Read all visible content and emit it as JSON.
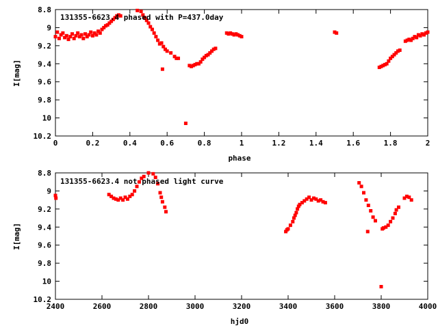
{
  "chart_data": [
    {
      "type": "scatter",
      "title": "131355-6623.4 phased with P=437.0day",
      "xlabel": "phase",
      "ylabel": "I[mag]",
      "xlim": [
        0,
        2
      ],
      "ylim": [
        10.2,
        8.8
      ],
      "y_inverted": true,
      "xticks": [
        0,
        0.2,
        0.4,
        0.6,
        0.8,
        1,
        1.2,
        1.4,
        1.6,
        1.8,
        2
      ],
      "xtick_labels": [
        "0",
        "0.2",
        "0.4",
        "0.6",
        "0.8",
        "1",
        "1.2",
        "1.4",
        "1.6",
        "1.8",
        "2"
      ],
      "yticks": [
        8.8,
        9,
        9.2,
        9.4,
        9.6,
        9.8,
        10,
        10.2
      ],
      "ytick_labels": [
        "8.8",
        "9",
        "9.2",
        "9.4",
        "9.6",
        "9.8",
        "10",
        "10.2"
      ],
      "grid": false,
      "marker_color": "#ff0000",
      "series": [
        {
          "points": [
            [
              0.0,
              9.1
            ],
            [
              0.01,
              9.05
            ],
            [
              0.02,
              9.12
            ],
            [
              0.03,
              9.08
            ],
            [
              0.04,
              9.06
            ],
            [
              0.05,
              9.11
            ],
            [
              0.06,
              9.09
            ],
            [
              0.07,
              9.13
            ],
            [
              0.08,
              9.1
            ],
            [
              0.09,
              9.07
            ],
            [
              0.1,
              9.12
            ],
            [
              0.11,
              9.09
            ],
            [
              0.12,
              9.06
            ],
            [
              0.13,
              9.1
            ],
            [
              0.14,
              9.08
            ],
            [
              0.15,
              9.12
            ],
            [
              0.16,
              9.07
            ],
            [
              0.17,
              9.1
            ],
            [
              0.18,
              9.08
            ],
            [
              0.19,
              9.05
            ],
            [
              0.2,
              9.09
            ],
            [
              0.21,
              9.06
            ],
            [
              0.22,
              9.08
            ],
            [
              0.23,
              9.04
            ],
            [
              0.24,
              9.06
            ],
            [
              0.25,
              9.02
            ],
            [
              0.26,
              9.0
            ],
            [
              0.27,
              8.98
            ],
            [
              0.28,
              8.97
            ],
            [
              0.29,
              8.95
            ],
            [
              0.3,
              8.93
            ],
            [
              0.31,
              8.91
            ],
            [
              0.32,
              8.89
            ],
            [
              0.33,
              8.87
            ],
            [
              0.34,
              8.86
            ],
            [
              0.35,
              8.87
            ],
            [
              0.44,
              8.81
            ],
            [
              0.46,
              8.82
            ],
            [
              0.47,
              8.86
            ],
            [
              0.48,
              8.89
            ],
            [
              0.49,
              8.92
            ],
            [
              0.5,
              8.95
            ],
            [
              0.51,
              8.99
            ],
            [
              0.52,
              9.02
            ],
            [
              0.53,
              9.06
            ],
            [
              0.54,
              9.1
            ],
            [
              0.55,
              9.14
            ],
            [
              0.56,
              9.18
            ],
            [
              0.57,
              9.17
            ],
            [
              0.575,
              9.46
            ],
            [
              0.58,
              9.21
            ],
            [
              0.59,
              9.24
            ],
            [
              0.6,
              9.26
            ],
            [
              0.62,
              9.28
            ],
            [
              0.64,
              9.32
            ],
            [
              0.65,
              9.34
            ],
            [
              0.66,
              9.34
            ],
            [
              0.7,
              10.06
            ],
            [
              0.72,
              9.42
            ],
            [
              0.73,
              9.43
            ],
            [
              0.74,
              9.42
            ],
            [
              0.75,
              9.41
            ],
            [
              0.76,
              9.4
            ],
            [
              0.77,
              9.4
            ],
            [
              0.78,
              9.38
            ],
            [
              0.79,
              9.35
            ],
            [
              0.8,
              9.33
            ],
            [
              0.81,
              9.31
            ],
            [
              0.82,
              9.3
            ],
            [
              0.83,
              9.28
            ],
            [
              0.84,
              9.26
            ],
            [
              0.85,
              9.24
            ],
            [
              0.86,
              9.23
            ],
            [
              0.92,
              9.06
            ],
            [
              0.93,
              9.07
            ],
            [
              0.94,
              9.06
            ],
            [
              0.95,
              9.07
            ],
            [
              0.96,
              9.08
            ],
            [
              0.97,
              9.07
            ],
            [
              0.98,
              9.08
            ],
            [
              0.99,
              9.09
            ],
            [
              1.0,
              9.1
            ],
            [
              1.5,
              9.05
            ],
            [
              1.51,
              9.06
            ],
            [
              1.74,
              9.44
            ],
            [
              1.75,
              9.43
            ],
            [
              1.76,
              9.42
            ],
            [
              1.77,
              9.41
            ],
            [
              1.78,
              9.4
            ],
            [
              1.79,
              9.37
            ],
            [
              1.8,
              9.34
            ],
            [
              1.81,
              9.32
            ],
            [
              1.82,
              9.3
            ],
            [
              1.83,
              9.28
            ],
            [
              1.84,
              9.26
            ],
            [
              1.85,
              9.25
            ],
            [
              1.88,
              9.15
            ],
            [
              1.89,
              9.14
            ],
            [
              1.9,
              9.13
            ],
            [
              1.91,
              9.14
            ],
            [
              1.92,
              9.12
            ],
            [
              1.93,
              9.1
            ],
            [
              1.94,
              9.11
            ],
            [
              1.95,
              9.08
            ],
            [
              1.96,
              9.09
            ],
            [
              1.97,
              9.07
            ],
            [
              1.98,
              9.08
            ],
            [
              1.99,
              9.06
            ],
            [
              2.0,
              9.05
            ]
          ]
        }
      ]
    },
    {
      "type": "scatter",
      "title": "131355-6623.4 not phased light curve",
      "xlabel": "hjd0",
      "ylabel": "I[mag]",
      "xlim": [
        2400,
        4000
      ],
      "ylim": [
        10.2,
        8.8
      ],
      "y_inverted": true,
      "xticks": [
        2400,
        2600,
        2800,
        3000,
        3200,
        3400,
        3600,
        3800,
        4000
      ],
      "xtick_labels": [
        "2400",
        "2600",
        "2800",
        "3000",
        "3200",
        "3400",
        "3600",
        "3800",
        "4000"
      ],
      "yticks": [
        8.8,
        9,
        9.2,
        9.4,
        9.6,
        9.8,
        10,
        10.2
      ],
      "ytick_labels": [
        "8.8",
        "9",
        "9.2",
        "9.4",
        "9.6",
        "9.8",
        "10",
        "10.2"
      ],
      "grid": false,
      "marker_color": "#ff0000",
      "series": [
        {
          "points": [
            [
              2400,
              9.05
            ],
            [
              2402,
              9.08
            ],
            [
              2630,
              9.04
            ],
            [
              2640,
              9.06
            ],
            [
              2650,
              9.08
            ],
            [
              2660,
              9.09
            ],
            [
              2670,
              9.1
            ],
            [
              2680,
              9.08
            ],
            [
              2690,
              9.1
            ],
            [
              2700,
              9.07
            ],
            [
              2710,
              9.09
            ],
            [
              2720,
              9.06
            ],
            [
              2730,
              9.04
            ],
            [
              2740,
              9.0
            ],
            [
              2750,
              8.95
            ],
            [
              2760,
              8.9
            ],
            [
              2770,
              8.86
            ],
            [
              2780,
              8.84
            ],
            [
              2800,
              8.8
            ],
            [
              2820,
              8.81
            ],
            [
              2830,
              8.85
            ],
            [
              2840,
              8.92
            ],
            [
              2850,
              9.02
            ],
            [
              2855,
              9.07
            ],
            [
              2860,
              9.12
            ],
            [
              2870,
              9.18
            ],
            [
              2875,
              9.23
            ],
            [
              3390,
              9.45
            ],
            [
              3395,
              9.43
            ],
            [
              3400,
              9.42
            ],
            [
              3410,
              9.38
            ],
            [
              3420,
              9.34
            ],
            [
              3425,
              9.3
            ],
            [
              3430,
              9.27
            ],
            [
              3435,
              9.24
            ],
            [
              3440,
              9.2
            ],
            [
              3445,
              9.17
            ],
            [
              3450,
              9.15
            ],
            [
              3460,
              9.13
            ],
            [
              3470,
              9.11
            ],
            [
              3480,
              9.09
            ],
            [
              3490,
              9.07
            ],
            [
              3500,
              9.1
            ],
            [
              3510,
              9.08
            ],
            [
              3520,
              9.09
            ],
            [
              3530,
              9.11
            ],
            [
              3540,
              9.1
            ],
            [
              3550,
              9.12
            ],
            [
              3560,
              9.13
            ],
            [
              3705,
              8.91
            ],
            [
              3715,
              8.95
            ],
            [
              3725,
              9.02
            ],
            [
              3735,
              9.1
            ],
            [
              3742,
              9.45
            ],
            [
              3745,
              9.16
            ],
            [
              3755,
              9.22
            ],
            [
              3765,
              9.29
            ],
            [
              3775,
              9.33
            ],
            [
              3800,
              10.06
            ],
            [
              3805,
              9.42
            ],
            [
              3810,
              9.41
            ],
            [
              3820,
              9.4
            ],
            [
              3830,
              9.38
            ],
            [
              3840,
              9.34
            ],
            [
              3850,
              9.3
            ],
            [
              3860,
              9.25
            ],
            [
              3865,
              9.21
            ],
            [
              3875,
              9.18
            ],
            [
              3900,
              9.08
            ],
            [
              3910,
              9.06
            ],
            [
              3920,
              9.07
            ],
            [
              3930,
              9.1
            ]
          ]
        }
      ]
    }
  ]
}
